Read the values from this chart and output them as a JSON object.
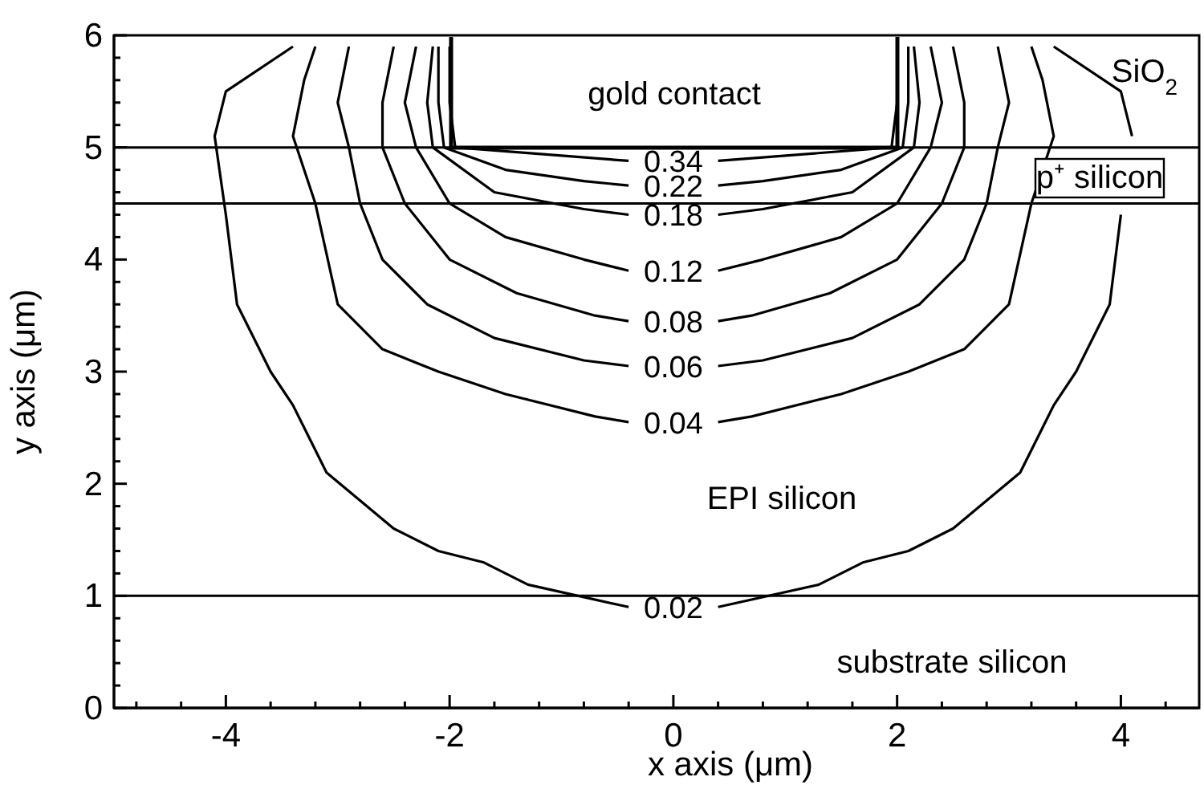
{
  "chart_data": {
    "type": "line",
    "xlabel": "x axis (μm)",
    "ylabel": "y axis (μm)",
    "xlim": [
      -5,
      4.7
    ],
    "ylim": [
      0,
      6
    ],
    "xticks": [
      {
        "value": -4.8,
        "label": null
      },
      {
        "value": -4.4,
        "label": null
      },
      -4,
      {
        "value": -3.6,
        "label": null
      },
      {
        "value": -3.2,
        "label": null
      },
      {
        "value": -2.8,
        "label": null
      },
      {
        "value": -2.4,
        "label": null
      },
      -2,
      {
        "value": -1.6,
        "label": null
      },
      {
        "value": -1.2,
        "label": null
      },
      {
        "value": -0.8,
        "label": null
      },
      {
        "value": -0.4,
        "label": null
      },
      0,
      {
        "value": 0.4,
        "label": null
      },
      {
        "value": 0.8,
        "label": null
      },
      {
        "value": 1.2,
        "label": null
      },
      {
        "value": 1.6,
        "label": null
      },
      2,
      {
        "value": 2.4,
        "label": null
      },
      {
        "value": 2.8,
        "label": null
      },
      {
        "value": 3.2,
        "label": null
      },
      {
        "value": 3.6,
        "label": null
      },
      4,
      {
        "value": 4.4,
        "label": null
      }
    ],
    "yticks": [
      0,
      {
        "value": 0.2,
        "label": null
      },
      {
        "value": 0.4,
        "label": null
      },
      {
        "value": 0.6,
        "label": null
      },
      {
        "value": 0.8,
        "label": null
      },
      1,
      {
        "value": 1.2,
        "label": null
      },
      {
        "value": 1.4,
        "label": null
      },
      {
        "value": 1.6,
        "label": null
      },
      {
        "value": 1.8,
        "label": null
      },
      2,
      {
        "value": 2.2,
        "label": null
      },
      {
        "value": 2.4,
        "label": null
      },
      {
        "value": 2.6,
        "label": null
      },
      {
        "value": 2.8,
        "label": null
      },
      3,
      {
        "value": 3.2,
        "label": null
      },
      {
        "value": 3.4,
        "label": null
      },
      {
        "value": 3.6,
        "label": null
      },
      {
        "value": 3.8,
        "label": null
      },
      4,
      {
        "value": 4.2,
        "label": null
      },
      {
        "value": 4.4,
        "label": null
      },
      {
        "value": 4.6,
        "label": null
      },
      {
        "value": 4.8,
        "label": null
      },
      5,
      {
        "value": 5.2,
        "label": null
      },
      {
        "value": 5.4,
        "label": null
      },
      {
        "value": 5.6,
        "label": null
      },
      {
        "value": 5.8,
        "label": null
      },
      6
    ],
    "series": [
      {
        "name": "0.02",
        "color": "#000000",
        "x": [
          -3.4,
          -4.0,
          -4.1,
          -4.0,
          -3.9,
          -3.6,
          -3.4,
          -3.1,
          -2.5,
          -2.1,
          -1.7,
          -1.3,
          -0.4,
          0,
          0.4,
          1.3,
          1.7,
          2.1,
          2.5,
          3.1,
          3.4,
          3.6,
          3.9,
          4.0,
          4.05,
          4.1,
          4.0,
          3.4
        ],
        "values": [
          5.9,
          5.5,
          5.1,
          4.4,
          3.6,
          3.0,
          2.7,
          2.1,
          1.6,
          1.4,
          1.3,
          1.1,
          0.9,
          null,
          0.9,
          1.1,
          1.3,
          1.4,
          1.6,
          2.1,
          2.7,
          3.0,
          3.6,
          4.4,
          null,
          5.1,
          5.5,
          5.9
        ]
      },
      {
        "name": "0.04",
        "color": "#000000",
        "x": [
          -3.2,
          -3.3,
          -3.4,
          -3.2,
          -3.0,
          -2.6,
          -2.1,
          -1.5,
          -0.7,
          -0.4,
          0,
          0.4,
          0.7,
          1.5,
          2.1,
          2.6,
          3.0,
          3.2,
          3.4,
          3.3,
          3.2
        ],
        "values": [
          5.9,
          5.6,
          5.1,
          4.5,
          3.6,
          3.2,
          3.0,
          2.8,
          2.6,
          2.55,
          null,
          2.55,
          2.6,
          2.8,
          3.0,
          3.2,
          3.6,
          4.5,
          5.1,
          5.6,
          5.9
        ]
      },
      {
        "name": "0.06",
        "color": "#000000",
        "x": [
          -2.9,
          -3.0,
          -2.9,
          -2.8,
          -2.6,
          -2.2,
          -1.6,
          -0.8,
          -0.4,
          0,
          0.4,
          0.8,
          1.6,
          2.2,
          2.6,
          2.8,
          2.9,
          3.0,
          2.9
        ],
        "values": [
          5.9,
          5.4,
          5.0,
          4.5,
          4.0,
          3.6,
          3.3,
          3.1,
          3.05,
          null,
          3.05,
          3.1,
          3.3,
          3.6,
          4.0,
          4.5,
          5.0,
          5.4,
          5.9
        ]
      },
      {
        "name": "0.08",
        "color": "#000000",
        "x": [
          -2.5,
          -2.6,
          -2.6,
          -2.4,
          -2.0,
          -1.4,
          -0.7,
          -0.4,
          0,
          0.4,
          0.7,
          1.4,
          2.0,
          2.4,
          2.6,
          2.6,
          2.5
        ],
        "values": [
          5.9,
          5.4,
          5.0,
          4.5,
          4.0,
          3.7,
          3.5,
          3.45,
          null,
          3.45,
          3.5,
          3.7,
          4.0,
          4.5,
          5.0,
          5.4,
          5.9
        ]
      },
      {
        "name": "0.12",
        "color": "#000000",
        "x": [
          -2.3,
          -2.4,
          -2.3,
          -2.0,
          -1.5,
          -0.8,
          -0.4,
          0,
          0.4,
          0.8,
          1.5,
          2.0,
          2.3,
          2.4,
          2.3
        ],
        "values": [
          5.9,
          5.4,
          5.0,
          4.5,
          4.2,
          4.0,
          3.9,
          null,
          3.9,
          4.0,
          4.2,
          4.5,
          5.0,
          5.4,
          5.9
        ]
      },
      {
        "name": "0.18",
        "color": "#000000",
        "x": [
          -2.15,
          -2.2,
          -2.15,
          -1.6,
          -0.8,
          -0.4,
          0,
          0.4,
          0.8,
          1.6,
          2.15,
          2.2,
          2.15
        ],
        "values": [
          5.9,
          5.4,
          5.0,
          4.6,
          4.45,
          4.4,
          null,
          4.4,
          4.45,
          4.6,
          5.0,
          5.4,
          5.9
        ]
      },
      {
        "name": "0.22",
        "color": "#000000",
        "x": [
          -2.1,
          -2.1,
          -2.05,
          -1.5,
          -0.8,
          -0.4,
          0,
          0.4,
          0.8,
          1.5,
          2.05,
          2.1,
          2.1
        ],
        "values": [
          5.9,
          5.4,
          5.0,
          4.8,
          4.7,
          4.66,
          null,
          4.66,
          4.7,
          4.8,
          5.0,
          5.4,
          5.9
        ]
      },
      {
        "name": "0.34",
        "color": "#000000",
        "x": [
          -2.0,
          -2.0,
          -1.95,
          -0.4,
          0,
          0.4,
          1.95,
          2.0,
          2.0
        ],
        "values": [
          5.9,
          5.4,
          5.0,
          4.88,
          null,
          4.88,
          5.0,
          5.4,
          5.9
        ]
      }
    ],
    "ref_lines": [
      {
        "axis": "y",
        "value": 5
      },
      {
        "axis": "y",
        "value": 4.5
      },
      {
        "axis": "y",
        "value": 1
      }
    ],
    "annotations": [
      "gold contact",
      "SiO$_{2}$",
      "p⁺ silicon",
      "EPI silicon",
      "substrate silicon"
    ],
    "legend": false
  }
}
